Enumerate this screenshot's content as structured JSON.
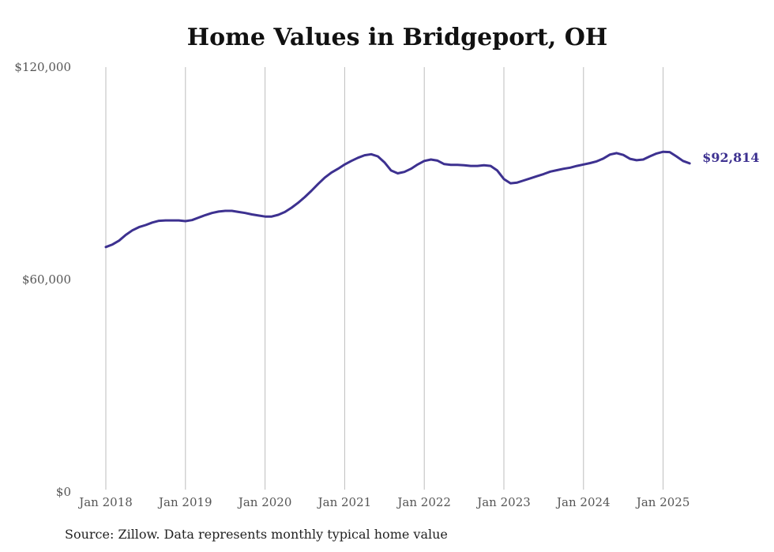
{
  "chart_data": {
    "type": "line",
    "title": "Home Values in Bridgeport, OH",
    "xlabel": "",
    "ylabel": "",
    "x_tick_labels": [
      "Jan 2018",
      "Jan 2019",
      "Jan 2020",
      "Jan 2021",
      "Jan 2022",
      "Jan 2023",
      "Jan 2024",
      "Jan 2025"
    ],
    "y_tick_labels": [
      "$120,000",
      "$60,000",
      "$0"
    ],
    "y_ticks": [
      120000,
      60000,
      0
    ],
    "ylim": [
      0,
      120000
    ],
    "xlim": [
      "2018-01",
      "2025-12"
    ],
    "grid": "vertical",
    "end_label": "$92,814",
    "line_color": "#3d3190",
    "series": [
      {
        "x": [
          "2018-01",
          "2018-02",
          "2018-03",
          "2018-04",
          "2018-05",
          "2018-06",
          "2018-07",
          "2018-08",
          "2018-09",
          "2018-10",
          "2018-11",
          "2018-12",
          "2019-01",
          "2019-02",
          "2019-03",
          "2019-04",
          "2019-05",
          "2019-06",
          "2019-07",
          "2019-08",
          "2019-09",
          "2019-10",
          "2019-11",
          "2019-12",
          "2020-01",
          "2020-02",
          "2020-03",
          "2020-04",
          "2020-05",
          "2020-06",
          "2020-07",
          "2020-08",
          "2020-09",
          "2020-10",
          "2020-11",
          "2020-12",
          "2021-01",
          "2021-02",
          "2021-03",
          "2021-04",
          "2021-05",
          "2021-06",
          "2021-07",
          "2021-08",
          "2021-09",
          "2021-10",
          "2021-11",
          "2021-12",
          "2022-01",
          "2022-02",
          "2022-03",
          "2022-04",
          "2022-05",
          "2022-06",
          "2022-07",
          "2022-08",
          "2022-09",
          "2022-10",
          "2022-11",
          "2022-12",
          "2023-01",
          "2023-02",
          "2023-03",
          "2023-04",
          "2023-05",
          "2023-06",
          "2023-07",
          "2023-08",
          "2023-09",
          "2023-10",
          "2023-11",
          "2023-12",
          "2024-01",
          "2024-02",
          "2024-03",
          "2024-04",
          "2024-05",
          "2024-06",
          "2024-07",
          "2024-08",
          "2024-09",
          "2024-10",
          "2024-11",
          "2024-12",
          "2025-01",
          "2025-02",
          "2025-03",
          "2025-04",
          "2025-05"
        ],
        "values": [
          69200,
          69900,
          71000,
          72600,
          73900,
          74800,
          75400,
          76100,
          76600,
          76700,
          76700,
          76700,
          76500,
          76800,
          77500,
          78200,
          78800,
          79200,
          79400,
          79400,
          79100,
          78800,
          78400,
          78100,
          77800,
          77800,
          78300,
          79100,
          80300,
          81700,
          83300,
          85100,
          87000,
          88800,
          90200,
          91300,
          92500,
          93500,
          94400,
          95100,
          95400,
          94800,
          93100,
          90800,
          90000,
          90400,
          91300,
          92500,
          93500,
          93900,
          93600,
          92600,
          92400,
          92400,
          92300,
          92100,
          92100,
          92300,
          92100,
          90800,
          88400,
          87200,
          87400,
          88000,
          88600,
          89200,
          89800,
          90500,
          90900,
          91300,
          91600,
          92100,
          92500,
          92900,
          93400,
          94200,
          95300,
          95700,
          95200,
          94100,
          93700,
          93900,
          94800,
          95600,
          96100,
          96000,
          94800,
          93500,
          92814
        ]
      }
    ]
  },
  "source": "Source: Zillow. Data represents monthly typical home value"
}
